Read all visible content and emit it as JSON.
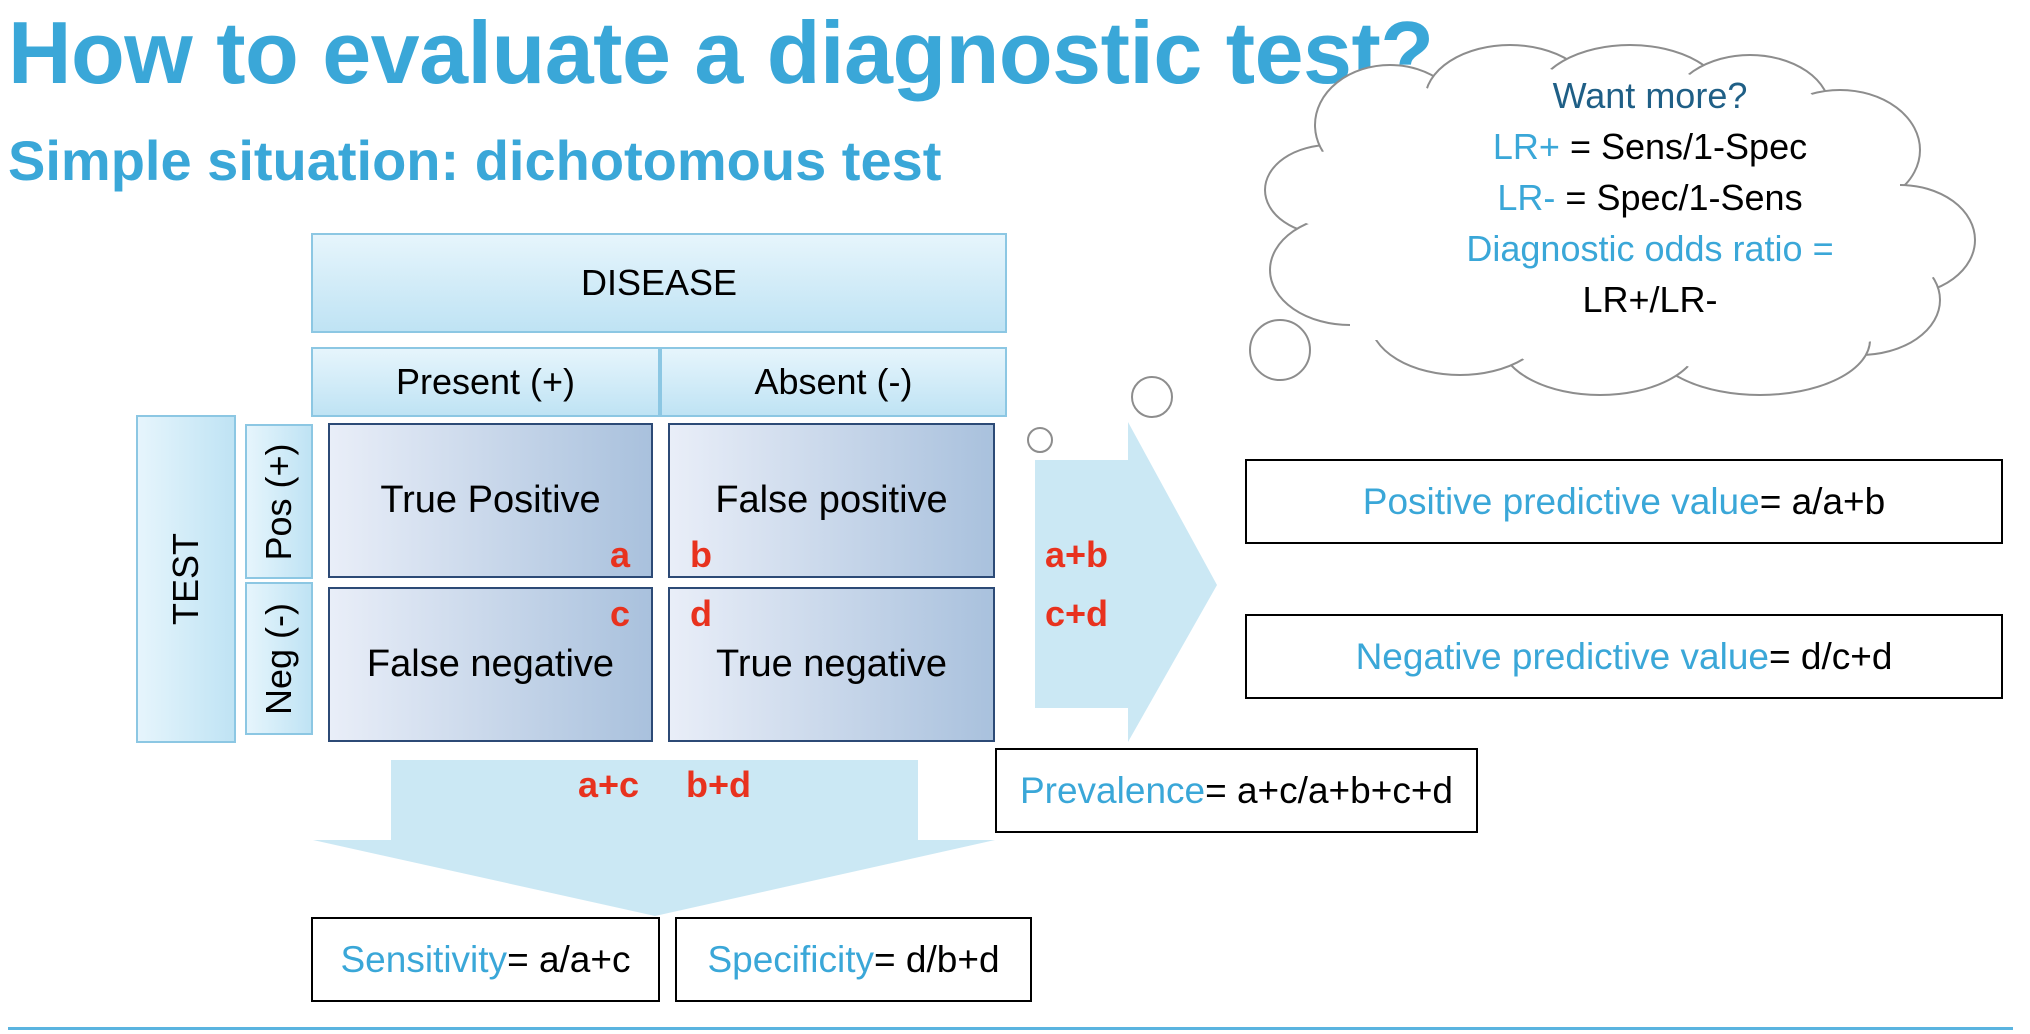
{
  "title": "How to evaluate a diagnostic test?",
  "subtitle": "Simple situation: dichotomous test",
  "table": {
    "disease_header": "DISEASE",
    "col_present": "Present (+)",
    "col_absent": "Absent (-)",
    "test_header": "TEST",
    "row_pos": "Pos (+)",
    "row_neg": "Neg (-)",
    "true_positive": "True Positive",
    "false_positive": "False positive",
    "false_negative": "False negative",
    "true_negative": "True negative",
    "a": "a",
    "b": "b",
    "c": "c",
    "d": "d"
  },
  "sums": {
    "row1": "a+b",
    "row2": "c+d",
    "col1": "a+c",
    "col2": "b+d"
  },
  "ppv": {
    "label": "Positive predictive value",
    "formula": " = a/a+b"
  },
  "npv": {
    "label": "Negative predictive value",
    "formula": " = d/c+d"
  },
  "prevalence": {
    "label": "Prevalence",
    "formula": "= a+c/a+b+c+d"
  },
  "sensitivity": {
    "label": "Sensitivity",
    "formula": " = a/a+c"
  },
  "specificity": {
    "label": "Specificity",
    "formula": " = d/b+d"
  },
  "cloud": {
    "heading": "Want more?",
    "lr_pos_label": "LR+",
    "lr_pos_formula": " = Sens/1-Spec",
    "lr_neg_label": "LR-",
    "lr_neg_formula": " = Spec/1-Sens",
    "dor_label": "Diagnostic odds ratio =",
    "dor_formula": "LR+/LR-"
  },
  "colors": {
    "accent_blue": "#3aa7d8",
    "red": "#e8321e",
    "arrow_fill": "#cbe8f4",
    "cell_border": "#2c4a76"
  }
}
